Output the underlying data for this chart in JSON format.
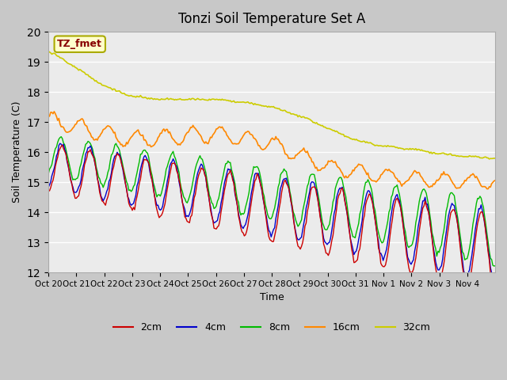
{
  "title": "Tonzi Soil Temperature Set A",
  "xlabel": "Time",
  "ylabel": "Soil Temperature (C)",
  "ylim": [
    12.0,
    20.0
  ],
  "yticks": [
    12.0,
    13.0,
    14.0,
    15.0,
    16.0,
    17.0,
    18.0,
    19.0,
    20.0
  ],
  "xtick_labels": [
    "Oct 20",
    "Oct 21",
    "Oct 22",
    "Oct 23",
    "Oct 24",
    "Oct 25",
    "Oct 26",
    "Oct 27",
    "Oct 28",
    "Oct 29",
    "Oct 30",
    "Oct 31",
    "Nov 1",
    "Nov 2",
    "Nov 3",
    "Nov 4"
  ],
  "annotation_text": "TZ_fmet",
  "annotation_bg": "#ffffcc",
  "annotation_border": "#aaaa00",
  "annotation_text_color": "#880000",
  "colors": {
    "2cm": "#cc0000",
    "4cm": "#0000cc",
    "8cm": "#00bb00",
    "16cm": "#ff8800",
    "32cm": "#cccc00"
  },
  "legend_labels": [
    "2cm",
    "4cm",
    "8cm",
    "16cm",
    "32cm"
  ],
  "plot_bg": "#ebebeb"
}
